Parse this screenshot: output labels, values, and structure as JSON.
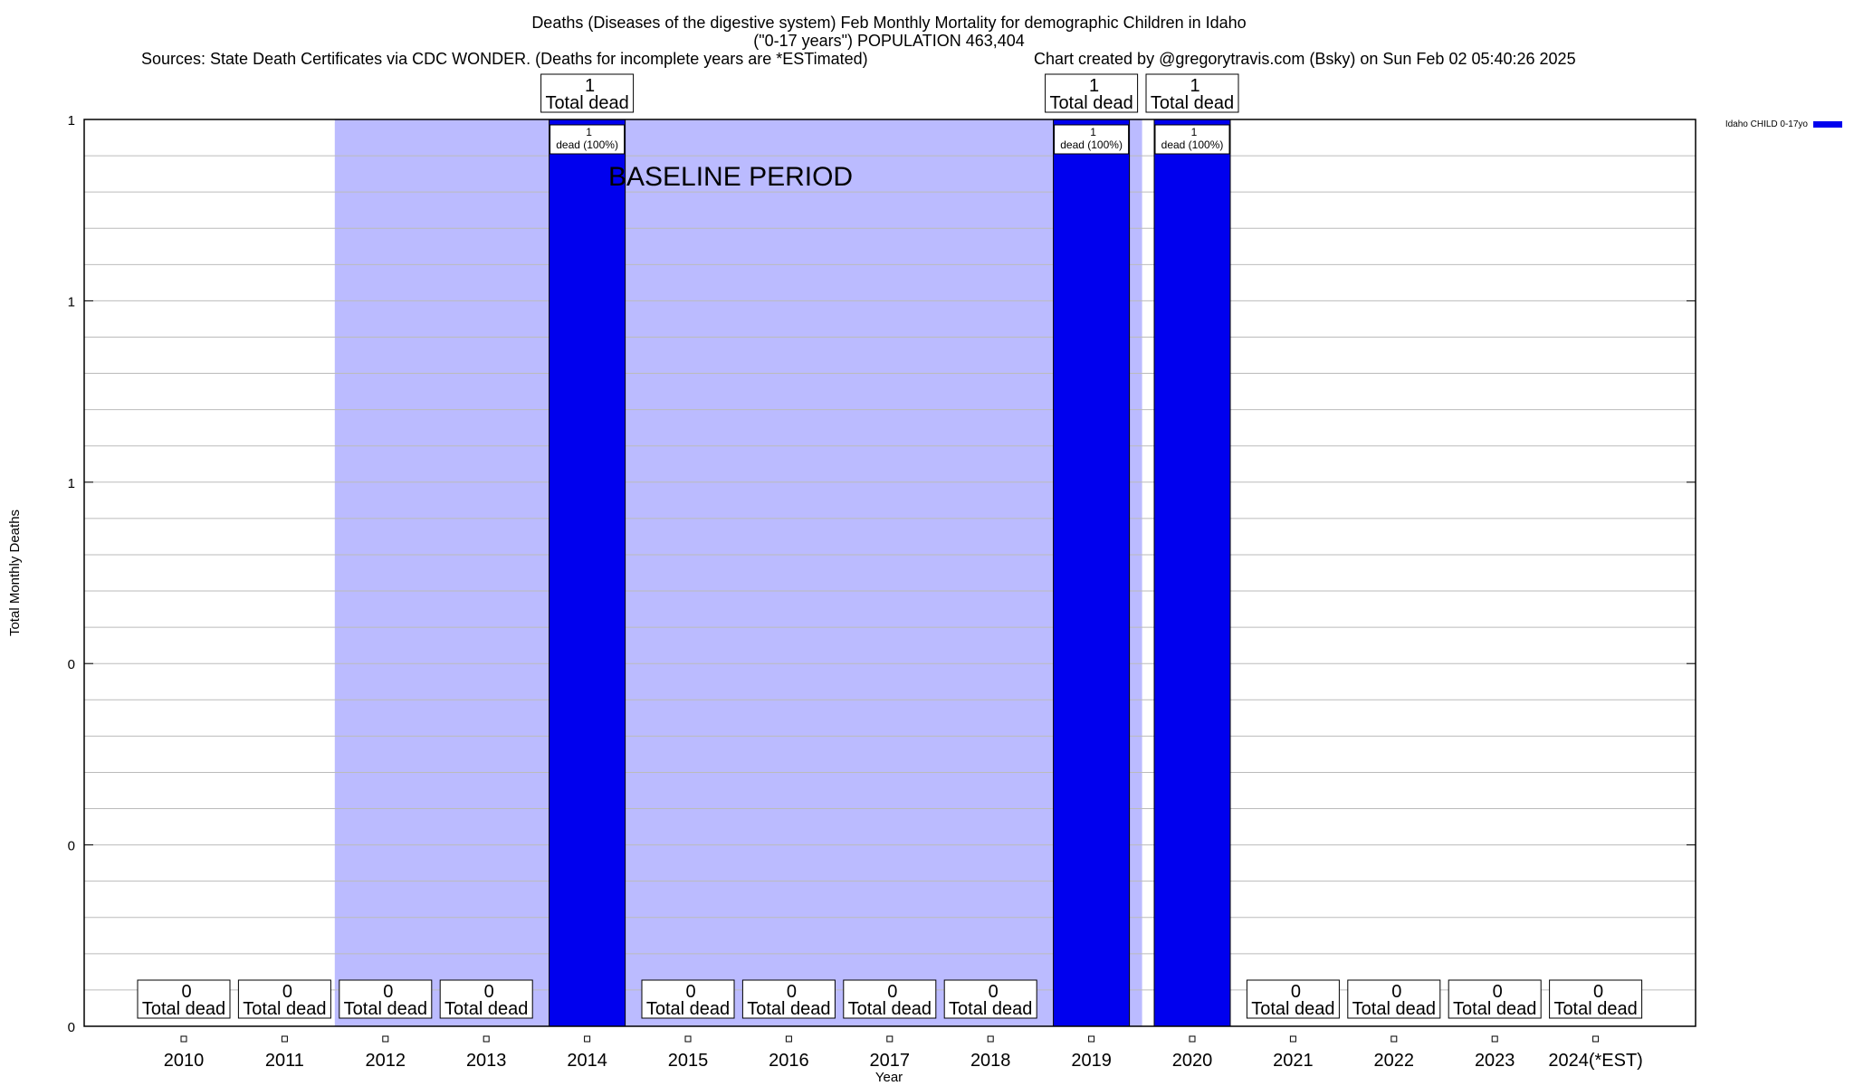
{
  "chart_data": {
    "type": "bar",
    "title": "Deaths (Diseases of the digestive system) Feb Monthly Mortality for demographic Children in Idaho",
    "subtitle": "(\"0-17 years\") POPULATION 463,404",
    "source_note": "Sources: State Death Certificates via CDC WONDER. (Deaths for incomplete years are *ESTimated)",
    "credit": "Chart created by @gregorytravis.com (Bsky) on Sun Feb 02 05:40:26 2025",
    "xlabel": "Year",
    "ylabel": "Total Monthly Deaths",
    "categories": [
      "2010",
      "2011",
      "2012",
      "2013",
      "2014",
      "2015",
      "2016",
      "2017",
      "2018",
      "2019",
      "2020",
      "2021",
      "2022",
      "2023",
      "2024(*EST)"
    ],
    "series": [
      {
        "name": "Idaho CHILD 0-17yo",
        "color": "#0000ee",
        "values": [
          0,
          0,
          0,
          0,
          1,
          0,
          0,
          0,
          0,
          1,
          1,
          0,
          0,
          0,
          0
        ]
      }
    ],
    "ylim": [
      0,
      1
    ],
    "ytick_labels": [
      "0",
      "0",
      "0",
      "1",
      "1",
      "1"
    ],
    "total_label_suffix": "Total dead",
    "inner_labels": {
      "4": [
        "1",
        "dead (100%)"
      ],
      "9": [
        "1",
        "dead (100%)"
      ],
      "10": [
        "1",
        "dead (100%)"
      ]
    },
    "baseline": {
      "label": "BASELINE PERIOD",
      "from": "2012",
      "to": "2019",
      "color": "#bbbbff"
    },
    "grid": true,
    "legend_position": "top-right"
  }
}
